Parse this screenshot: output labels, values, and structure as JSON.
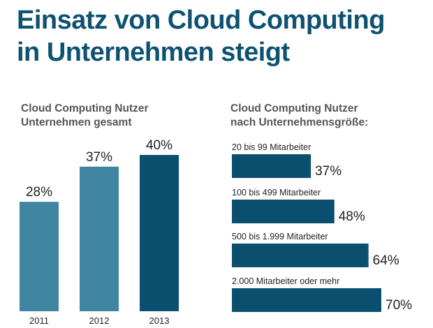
{
  "title": {
    "line1": "Einsatz von Cloud Computing",
    "line2": "in Unternehmen steigt"
  },
  "colors": {
    "title": "#0e5272",
    "bar_light": "#3f84a0",
    "bar_dark": "#0b4f6f",
    "subtitle": "#555555"
  },
  "chart_data": [
    {
      "type": "bar",
      "subtitle_line1": "Cloud Computing Nutzer",
      "subtitle_line2": "Unternehmen gesamt",
      "categories": [
        "2011",
        "2012",
        "2013"
      ],
      "values": [
        28,
        37,
        40
      ],
      "value_labels": [
        "28%",
        "37%",
        "40%"
      ],
      "unit": "%",
      "ylim": [
        0,
        40
      ],
      "grid": false,
      "legend": "none"
    },
    {
      "type": "bar",
      "orientation": "horizontal",
      "subtitle_line1": "Cloud Computing Nutzer",
      "subtitle_line2": "nach Unternehmensgröße:",
      "categories": [
        "20 bis 99 Mitarbeiter",
        "100 bis 499 Mitarbeiter",
        "500 bis 1.999 Mitarbeiter",
        "2.000 Mitarbeiter oder mehr"
      ],
      "values": [
        37,
        48,
        64,
        70
      ],
      "value_labels": [
        "37%",
        "48%",
        "64%",
        "70%"
      ],
      "unit": "%",
      "xlim": [
        0,
        70
      ],
      "grid": false,
      "legend": "none"
    }
  ]
}
